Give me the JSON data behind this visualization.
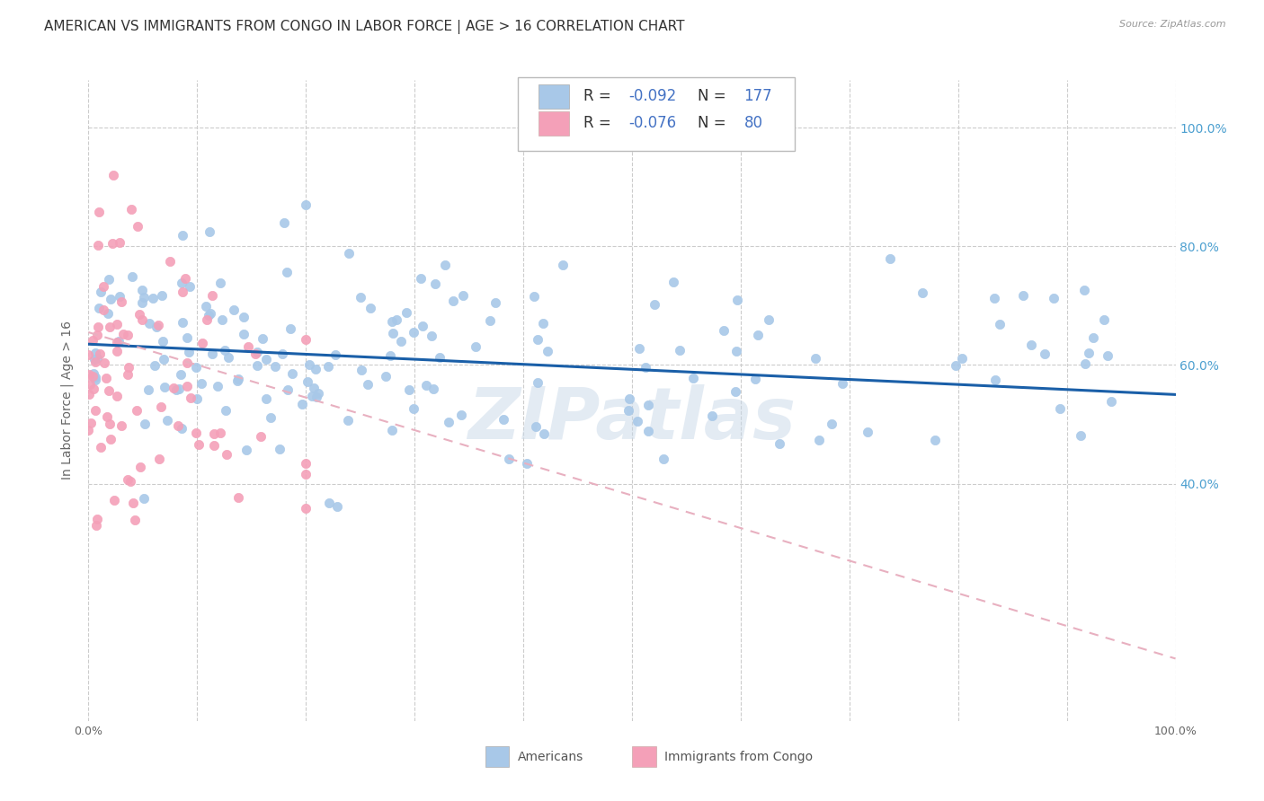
{
  "title": "AMERICAN VS IMMIGRANTS FROM CONGO IN LABOR FORCE | AGE > 16 CORRELATION CHART",
  "source": "Source: ZipAtlas.com",
  "ylabel_text": "In Labor Force | Age > 16",
  "watermark": "ZIPatlas",
  "legend_blue_label": "Americans",
  "legend_pink_label": "Immigrants from Congo",
  "R_blue": -0.092,
  "N_blue": 177,
  "R_pink": -0.076,
  "N_pink": 80,
  "blue_color": "#a8c8e8",
  "pink_color": "#f4a0b8",
  "blue_line_color": "#1a5fa8",
  "pink_line_color": "#e8b0c0",
  "xlim": [
    0.0,
    1.0
  ],
  "ylim": [
    0.0,
    1.08
  ],
  "x_ticks": [
    0.0,
    0.1,
    0.2,
    0.3,
    0.4,
    0.5,
    0.6,
    0.7,
    0.8,
    0.9,
    1.0
  ],
  "y_ticks": [
    0.4,
    0.6,
    0.8,
    1.0
  ],
  "y_tick_labels": [
    "40.0%",
    "60.0%",
    "80.0%",
    "100.0%"
  ],
  "title_fontsize": 11,
  "axis_label_fontsize": 10,
  "tick_fontsize": 9,
  "background_color": "#ffffff",
  "grid_color": "#cccccc"
}
